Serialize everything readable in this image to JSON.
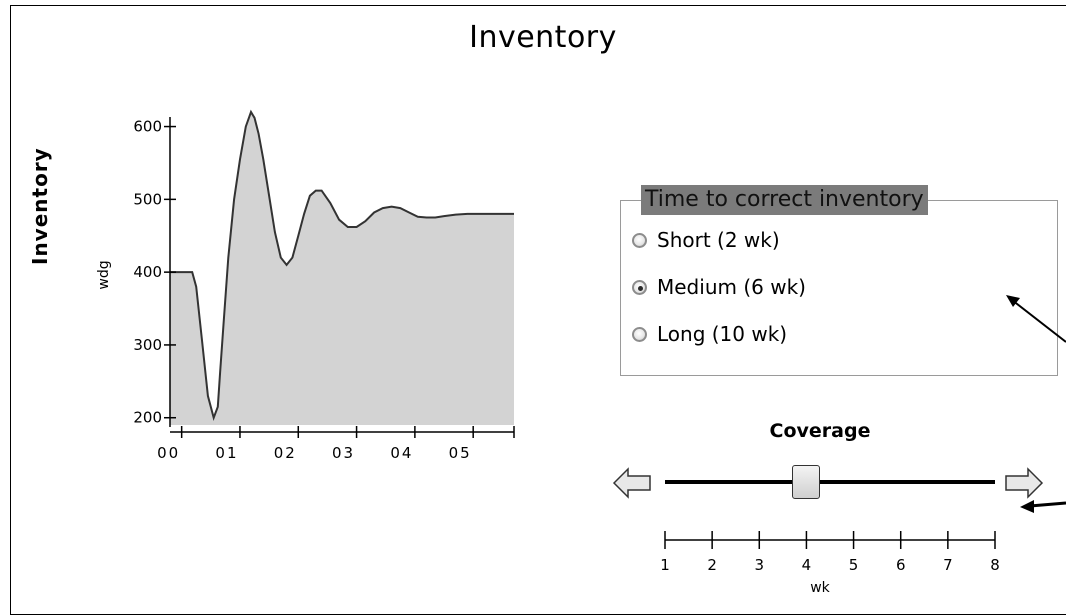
{
  "title": "Inventory",
  "chart_data": {
    "type": "area",
    "ylabel": "Inventory",
    "yunit": "wdg",
    "ylim": [
      190,
      620
    ],
    "yticks": [
      200,
      300,
      400,
      500,
      600
    ],
    "xlim": [
      -0.2,
      5.7
    ],
    "xtick_values": [
      0,
      1,
      2,
      3,
      4,
      5
    ],
    "xtick_labels": [
      "00",
      "01",
      "02",
      "03",
      "04",
      "05"
    ],
    "fill_color": "#d3d3d3",
    "line_color": "#333333",
    "x": [
      -0.2,
      0.18,
      0.25,
      0.35,
      0.45,
      0.55,
      0.62,
      0.66,
      0.72,
      0.8,
      0.9,
      1.0,
      1.1,
      1.19,
      1.25,
      1.32,
      1.4,
      1.5,
      1.6,
      1.7,
      1.8,
      1.9,
      2.0,
      2.1,
      2.2,
      2.3,
      2.4,
      2.55,
      2.7,
      2.85,
      3.0,
      3.15,
      3.3,
      3.45,
      3.6,
      3.75,
      3.9,
      4.05,
      4.2,
      4.35,
      4.5,
      4.7,
      4.9,
      5.1,
      5.3,
      5.5,
      5.7
    ],
    "y": [
      400,
      400,
      380,
      305,
      230,
      200,
      215,
      262,
      330,
      420,
      500,
      555,
      600,
      620,
      612,
      590,
      555,
      505,
      455,
      420,
      410,
      420,
      450,
      480,
      505,
      512,
      512,
      495,
      472,
      462,
      462,
      470,
      482,
      488,
      490,
      488,
      482,
      476,
      475,
      475,
      477,
      479,
      480,
      480,
      480,
      480,
      480
    ]
  },
  "radio_group": {
    "legend": "Time to correct inventory",
    "options": [
      {
        "label": "Short (2 wk)",
        "checked": false
      },
      {
        "label": "Medium (6 wk)",
        "checked": true
      },
      {
        "label": "Long (10 wk)",
        "checked": false
      }
    ]
  },
  "slider": {
    "title": "Coverage",
    "min": 1,
    "max": 8,
    "value": 4,
    "tick_labels": [
      "1",
      "2",
      "3",
      "4",
      "5",
      "6",
      "7",
      "8"
    ],
    "unit": "wk"
  }
}
